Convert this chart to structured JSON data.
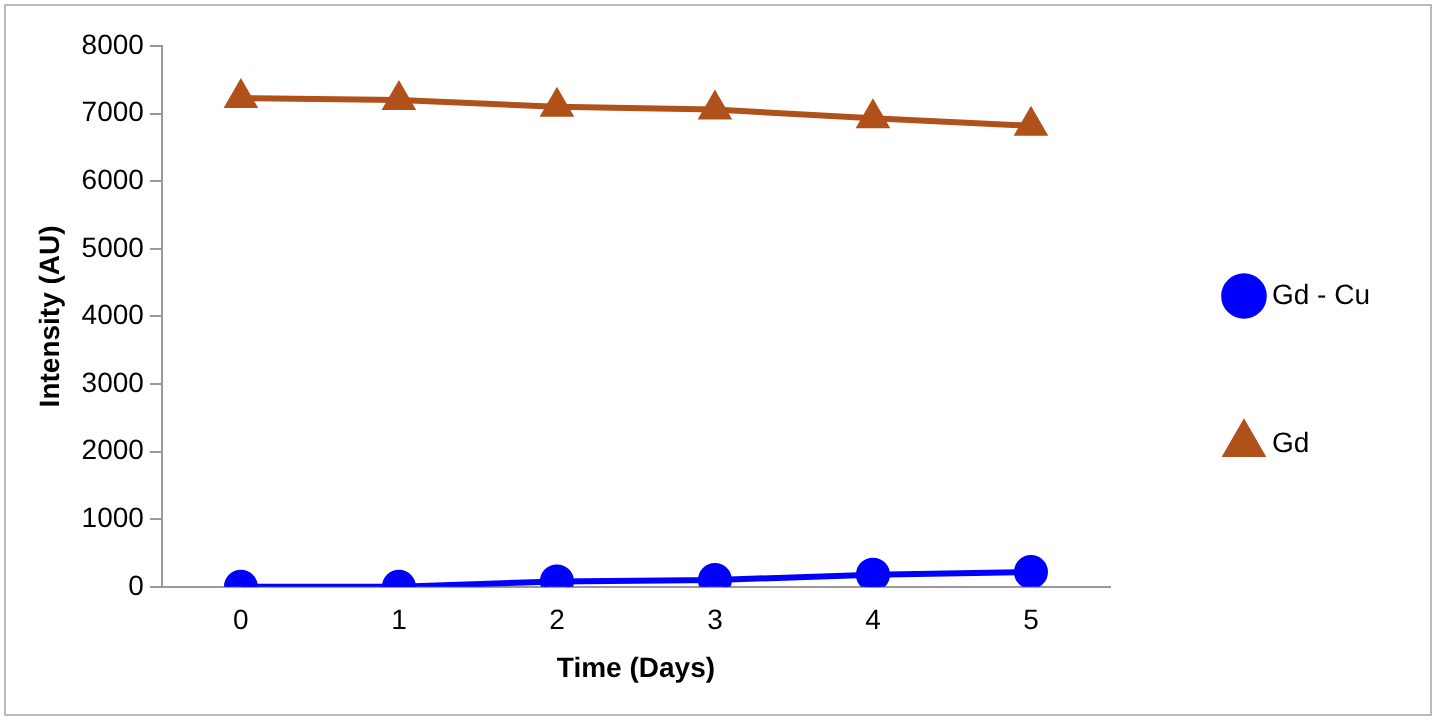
{
  "chart_data": {
    "type": "line",
    "xlabel": "Time (Days)",
    "ylabel": "Intensity (AU)",
    "categories": [
      "0",
      "1",
      "2",
      "3",
      "4",
      "5"
    ],
    "series": [
      {
        "name": "Gd - Cu",
        "color": "#0000ff",
        "marker": "circle",
        "values": [
          0,
          0,
          80,
          100,
          180,
          220
        ]
      },
      {
        "name": "Gd",
        "color": "#b0501a",
        "marker": "triangle",
        "values": [
          7230,
          7200,
          7100,
          7060,
          6930,
          6820
        ]
      }
    ],
    "ylim": [
      0,
      8000
    ],
    "yticks": [
      0,
      1000,
      2000,
      3000,
      4000,
      5000,
      6000,
      7000,
      8000
    ],
    "grid": false,
    "legend": "right"
  }
}
